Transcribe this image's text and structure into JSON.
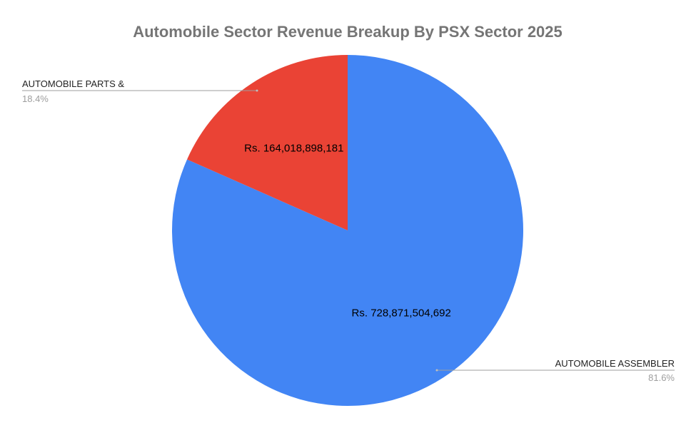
{
  "chart_data": {
    "type": "pie",
    "title": "Automobile Sector Revenue Breakup By PSX Sector 2025",
    "currency_prefix": "Rs.",
    "slices": [
      {
        "category": "AUTOMOBILE ASSEMBLER",
        "value": 728871504692,
        "value_label": "Rs.  728,871,504,692",
        "percent_label": "81.6%",
        "color": "#4285f4"
      },
      {
        "category": "AUTOMOBILE PARTS &",
        "value": 164018898181,
        "value_label": "Rs.  164,018,898,181",
        "percent_label": "18.4%",
        "color": "#ea4335"
      }
    ],
    "legend": "callout labels outside the pie"
  }
}
